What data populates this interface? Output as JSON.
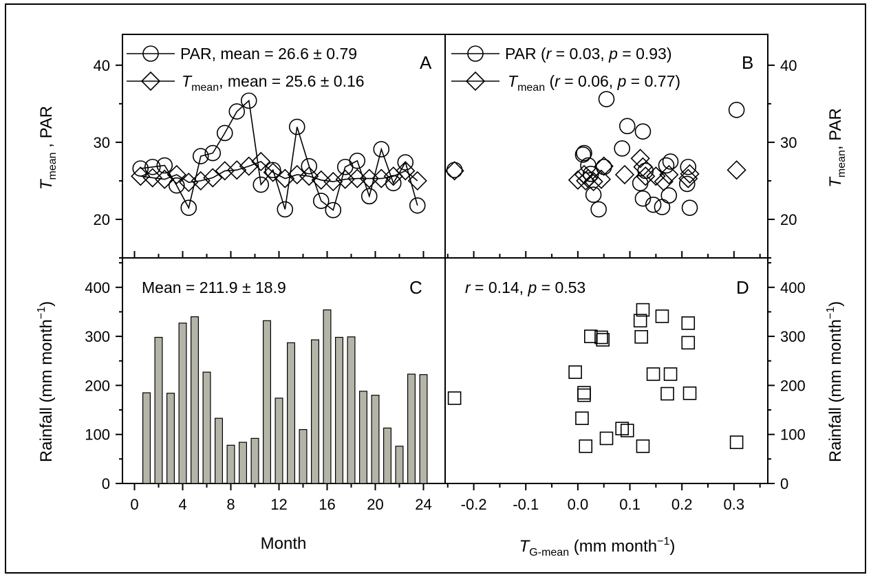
{
  "chart_data": [
    {
      "panel": "A",
      "type": "line",
      "ylabel": {
        "sym": "T",
        "sub": "mean",
        "rest": " , PAR"
      },
      "ylim": [
        15,
        44
      ],
      "yticks": [
        "20",
        "30",
        "40"
      ],
      "xlim": [
        -1,
        25.8
      ],
      "legend": [
        {
          "lead": "PAR, mean = 26.6 ± 0.79"
        },
        {
          "sym": "T",
          "sub": "mean",
          "tail": ", mean = 25.6 ± 0.16"
        }
      ],
      "series": [
        {
          "name": "PAR",
          "marker": "circle",
          "x": [
            0.5,
            1.5,
            2.5,
            3.5,
            4.5,
            5.5,
            6.5,
            7.5,
            8.5,
            9.5,
            10.5,
            11.5,
            12.5,
            13.5,
            14.5,
            15.5,
            16.5,
            17.5,
            18.5,
            19.5,
            20.5,
            21.5,
            22.5,
            23.5
          ],
          "y": [
            26.6,
            26.8,
            27.0,
            24.4,
            21.5,
            28.2,
            28.6,
            31.2,
            34.0,
            35.4,
            24.5,
            26.4,
            21.3,
            32.0,
            26.9,
            22.4,
            21.2,
            26.8,
            27.6,
            23.0,
            29.1,
            24.7,
            27.4,
            21.8
          ]
        },
        {
          "name": "Tmean",
          "marker": "diamond",
          "x": [
            0.5,
            1.5,
            2.5,
            3.5,
            4.5,
            5.5,
            6.5,
            7.5,
            8.5,
            9.5,
            10.5,
            11.5,
            12.5,
            13.5,
            14.5,
            15.5,
            16.5,
            17.5,
            18.5,
            19.5,
            20.5,
            21.5,
            22.5,
            23.5
          ],
          "y": [
            25.6,
            25.4,
            25.2,
            25.8,
            24.8,
            25.0,
            25.4,
            26.3,
            26.4,
            26.9,
            27.5,
            26.1,
            25.3,
            25.8,
            25.6,
            25.1,
            24.9,
            25.2,
            25.3,
            25.3,
            25.3,
            25.6,
            26.3,
            25.0
          ]
        }
      ]
    },
    {
      "panel": "B",
      "type": "scatter",
      "ylabel": {
        "sym": "T",
        "sub": "mean",
        "rest": ", PAR"
      },
      "ylim": [
        15,
        44
      ],
      "yticks": [
        "20",
        "30",
        "40"
      ],
      "xlim": [
        -0.255,
        0.365
      ],
      "legend": [
        {
          "lead": "PAR (",
          "r": "r",
          "mid": " = 0.03, ",
          "p": "p",
          "tail": " = 0.93)"
        },
        {
          "sym": "T",
          "sub": "mean",
          "lead": " (",
          "r": "r",
          "mid": " = 0.06, ",
          "p": "p",
          "tail": " = 0.77)"
        }
      ],
      "series": [
        {
          "name": "PAR",
          "marker": "circle",
          "x": [
            -0.237,
            0.01,
            0.012,
            0.02,
            0.025,
            0.03,
            0.04,
            0.05,
            0.055,
            0.085,
            0.095,
            0.12,
            0.125,
            0.125,
            0.13,
            0.145,
            0.162,
            0.17,
            0.175,
            0.178,
            0.21,
            0.212,
            0.215,
            0.305
          ],
          "y": [
            26.4,
            28.4,
            28.6,
            27.0,
            25.9,
            23.2,
            21.3,
            26.8,
            35.6,
            29.2,
            32.1,
            24.7,
            31.4,
            22.7,
            26.3,
            21.9,
            21.6,
            27.0,
            23.1,
            27.5,
            24.6,
            26.8,
            21.5,
            34.2
          ]
        },
        {
          "name": "Tmean",
          "marker": "diamond",
          "x": [
            -0.237,
            0.0,
            0.012,
            0.015,
            0.02,
            0.03,
            0.045,
            0.05,
            0.09,
            0.12,
            0.125,
            0.13,
            0.15,
            0.165,
            0.175,
            0.212,
            0.215,
            0.305
          ],
          "y": [
            26.3,
            25.1,
            25.8,
            25.0,
            25.3,
            24.9,
            25.2,
            26.9,
            25.8,
            27.9,
            26.8,
            25.6,
            25.6,
            24.9,
            25.8,
            25.3,
            25.9,
            26.4
          ]
        }
      ]
    },
    {
      "panel": "C",
      "type": "bar",
      "xlabel": "Month",
      "ylabel": {
        "main": "Rainfall (mm month",
        "sup": "−1",
        "close": ")"
      },
      "annotation": "Mean = 211.9 ± 18.9",
      "ylim": [
        0,
        460
      ],
      "yticks": [
        "0",
        "100",
        "200",
        "300",
        "400"
      ],
      "xlim": [
        -1,
        25.8
      ],
      "xticks": [
        "0",
        "4",
        "8",
        "12",
        "16",
        "20",
        "24"
      ],
      "categories": [
        1,
        2,
        3,
        4,
        5,
        6,
        7,
        8,
        9,
        10,
        11,
        12,
        13,
        14,
        15,
        16,
        17,
        18,
        19,
        20,
        21,
        22,
        23,
        24
      ],
      "values": [
        185,
        298,
        184,
        327,
        340,
        227,
        133,
        78,
        84,
        92,
        332,
        174,
        287,
        110,
        293,
        354,
        298,
        299,
        188,
        180,
        113,
        76,
        223,
        222
      ]
    },
    {
      "panel": "D",
      "type": "scatter",
      "xlabel": {
        "sym": "T",
        "sub": "G-mean",
        "rest": " (mm month",
        "sup": "−1",
        "close": ")"
      },
      "ylabel": {
        "main": "Rainfall (mm month",
        "sup": "−1",
        "close": ")"
      },
      "annotation": {
        "r": "r",
        "mid": " = 0.14, ",
        "p": "p",
        "tail": " = 0.53"
      },
      "ylim": [
        0,
        460
      ],
      "yticks": [
        "0",
        "100",
        "200",
        "300",
        "400"
      ],
      "xlim": [
        -0.255,
        0.365
      ],
      "xticks": [
        "-0.2",
        "-0.1",
        "0.0",
        "0.1",
        "0.2",
        "0.3"
      ],
      "series": [
        {
          "name": "Rainfall",
          "marker": "square",
          "x": [
            -0.237,
            -0.005,
            0.008,
            0.012,
            0.012,
            0.015,
            0.025,
            0.045,
            0.048,
            0.055,
            0.085,
            0.095,
            0.12,
            0.122,
            0.125,
            0.125,
            0.145,
            0.162,
            0.172,
            0.178,
            0.212,
            0.212,
            0.215,
            0.305
          ],
          "y": [
            174,
            227,
            133,
            185,
            180,
            76,
            300,
            298,
            293,
            92,
            112,
            108,
            332,
            299,
            354,
            76,
            223,
            341,
            183,
            223,
            327,
            287,
            184,
            84
          ]
        }
      ]
    }
  ]
}
